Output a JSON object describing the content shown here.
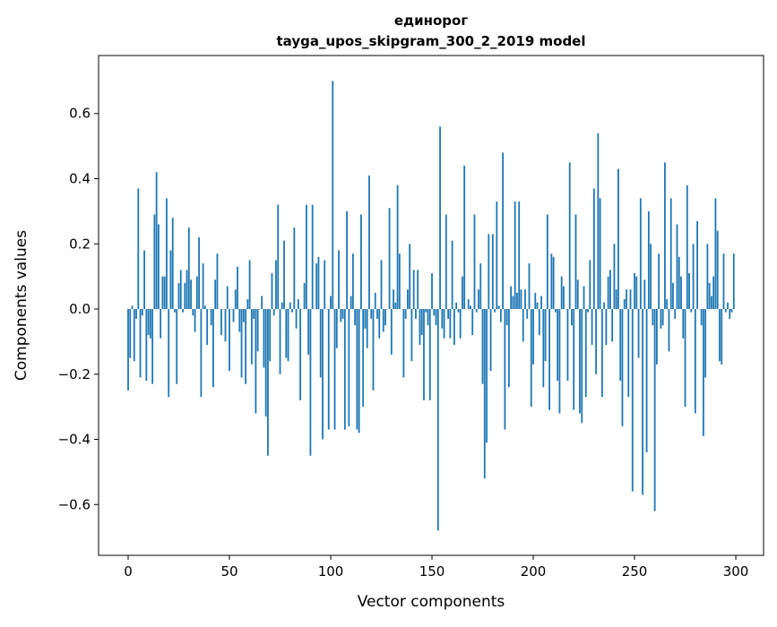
{
  "chart_data": {
    "type": "bar",
    "title": "единорог",
    "subtitle": "tayga_upos_skipgram_300_2_2019 model",
    "xlabel": "Vector components",
    "ylabel": "Components values",
    "xlim": [
      -14.6,
      313.7
    ],
    "ylim": [
      -0.756,
      0.778
    ],
    "xticks": [
      0,
      50,
      100,
      150,
      200,
      250,
      300
    ],
    "xtick_labels": [
      "0",
      "50",
      "100",
      "150",
      "200",
      "250",
      "300"
    ],
    "yticks": [
      -0.6,
      -0.4,
      -0.2,
      0.0,
      0.2,
      0.4,
      0.6
    ],
    "ytick_labels": [
      "−0.6",
      "−0.4",
      "−0.2",
      "0.0",
      "0.2",
      "0.4",
      "0.6"
    ],
    "grid": false,
    "bar_color": "#1f77b4",
    "values": [
      -0.25,
      -0.15,
      0.01,
      -0.16,
      -0.03,
      0.37,
      -0.21,
      -0.02,
      0.18,
      -0.22,
      -0.08,
      -0.09,
      -0.23,
      0.29,
      0.42,
      0.26,
      -0.09,
      0.1,
      0.1,
      0.34,
      -0.27,
      0.18,
      0.28,
      -0.01,
      -0.23,
      0.08,
      0.12,
      -0.01,
      0.08,
      0.12,
      0.25,
      0.09,
      -0.02,
      -0.07,
      0.1,
      0.22,
      -0.27,
      0.14,
      0.01,
      -0.11,
      0.0,
      -0.05,
      -0.24,
      0.09,
      0.17,
      0.0,
      -0.08,
      0.0,
      -0.1,
      0.07,
      -0.19,
      0.0,
      -0.04,
      0.06,
      0.13,
      -0.07,
      -0.21,
      -0.04,
      -0.23,
      0.03,
      0.15,
      -0.17,
      -0.03,
      -0.32,
      -0.13,
      0.0,
      0.04,
      -0.18,
      -0.33,
      -0.45,
      -0.16,
      0.11,
      -0.02,
      0.15,
      0.32,
      -0.2,
      0.02,
      0.21,
      -0.15,
      -0.16,
      0.02,
      -0.01,
      0.25,
      -0.06,
      0.03,
      -0.28,
      0.0,
      0.08,
      0.32,
      -0.14,
      -0.45,
      0.32,
      0.0,
      0.14,
      0.16,
      -0.21,
      -0.4,
      0.15,
      0.0,
      -0.37,
      0.04,
      0.7,
      -0.37,
      -0.12,
      0.18,
      -0.04,
      -0.03,
      -0.37,
      0.3,
      -0.36,
      0.04,
      0.17,
      -0.05,
      -0.37,
      -0.38,
      0.29,
      -0.3,
      -0.06,
      -0.12,
      0.41,
      -0.03,
      -0.25,
      0.05,
      -0.03,
      -0.09,
      0.15,
      -0.07,
      -0.05,
      0.0,
      0.31,
      -0.14,
      0.06,
      0.02,
      0.38,
      0.17,
      0.0,
      -0.21,
      -0.03,
      0.06,
      0.2,
      -0.16,
      0.12,
      -0.03,
      0.12,
      -0.11,
      -0.08,
      -0.28,
      -0.01,
      -0.05,
      -0.28,
      0.11,
      -0.02,
      -0.05,
      -0.68,
      0.56,
      -0.06,
      -0.09,
      0.29,
      -0.03,
      -0.09,
      0.21,
      -0.11,
      0.02,
      -0.01,
      -0.09,
      0.1,
      0.44,
      0.0,
      0.03,
      0.01,
      -0.08,
      0.29,
      -0.01,
      0.06,
      0.14,
      -0.23,
      -0.52,
      -0.41,
      0.23,
      -0.19,
      0.23,
      -0.01,
      0.33,
      0.01,
      -0.04,
      0.48,
      -0.37,
      -0.05,
      -0.24,
      0.07,
      0.04,
      0.33,
      0.05,
      0.33,
      0.06,
      -0.1,
      0.06,
      -0.03,
      0.14,
      -0.3,
      -0.17,
      0.05,
      0.02,
      -0.08,
      0.04,
      -0.24,
      -0.16,
      0.29,
      -0.31,
      0.17,
      0.16,
      -0.01,
      -0.22,
      -0.32,
      0.1,
      0.07,
      0.0,
      -0.22,
      0.45,
      -0.05,
      -0.31,
      0.29,
      0.09,
      -0.32,
      -0.35,
      0.07,
      -0.27,
      -0.01,
      0.15,
      -0.11,
      0.37,
      -0.2,
      0.54,
      0.34,
      -0.27,
      0.02,
      -0.11,
      0.1,
      0.12,
      -0.1,
      0.2,
      0.06,
      0.43,
      -0.22,
      -0.36,
      0.03,
      0.06,
      -0.27,
      0.06,
      -0.56,
      0.11,
      0.1,
      -0.15,
      0.34,
      -0.57,
      0.09,
      -0.44,
      0.3,
      0.2,
      -0.05,
      -0.62,
      -0.17,
      0.17,
      -0.06,
      -0.05,
      0.45,
      0.03,
      -0.13,
      0.34,
      0.08,
      -0.03,
      0.26,
      0.16,
      0.1,
      -0.09,
      -0.3,
      0.38,
      0.11,
      -0.01,
      0.2,
      -0.32,
      0.27,
      0.0,
      -0.05,
      -0.39,
      -0.21,
      0.2,
      0.08,
      0.04,
      0.1,
      0.34,
      0.24,
      -0.16,
      -0.17,
      0.17,
      -0.01,
      0.02,
      -0.03,
      -0.01,
      0.17
    ]
  }
}
